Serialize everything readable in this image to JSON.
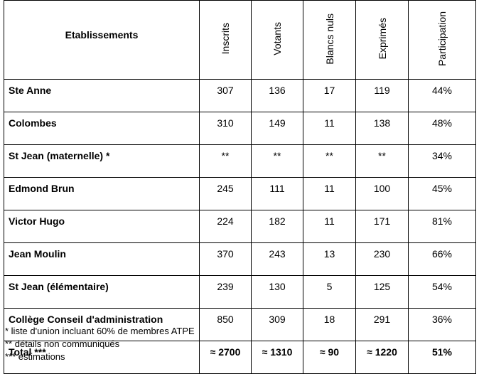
{
  "table": {
    "headers": [
      "Etablissements",
      "Inscrits",
      "Votants",
      "Blancs nuls",
      "Exprimés",
      "Participation"
    ],
    "rows": [
      [
        "Ste Anne",
        "307",
        "136",
        "17",
        "119",
        "44%"
      ],
      [
        "Colombes",
        "310",
        "149",
        "11",
        "138",
        "48%"
      ],
      [
        "St Jean (maternelle) *",
        "**",
        "**",
        "**",
        "**",
        "34%"
      ],
      [
        "Edmond Brun",
        "245",
        "111",
        "11",
        "100",
        "45%"
      ],
      [
        "Victor Hugo",
        "224",
        "182",
        "11",
        "171",
        "81%"
      ],
      [
        "Jean Moulin",
        "370",
        "243",
        "13",
        "230",
        "66%"
      ],
      [
        "St Jean (élémentaire)",
        "239",
        "130",
        "5",
        "125",
        "54%"
      ],
      [
        "Collège Conseil d'administration",
        "850",
        "309",
        "18",
        "291",
        "36%"
      ]
    ],
    "total": [
      "Total ***",
      "≈ 2700",
      "≈ 1310",
      "≈ 90",
      "≈ 1220",
      "51%"
    ]
  },
  "notes": [
    "* liste d'union incluant 60% de membres ATPE",
    "** détails non communiqués",
    "*** estimations"
  ]
}
